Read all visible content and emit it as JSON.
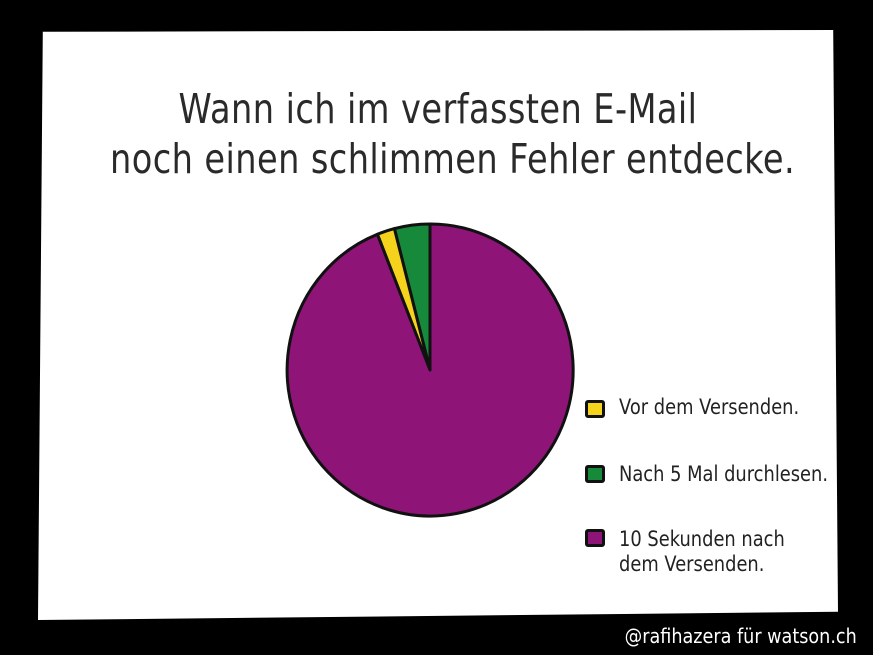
{
  "chart_data": {
    "type": "pie",
    "title_lines": [
      "Wann ich im verfassten E-Mail",
      "noch einen schlimmen Fehler entdecke."
    ],
    "slices": [
      {
        "label": "Vor dem Versenden.",
        "value": 2,
        "color": "#f5d21c"
      },
      {
        "label": "Nach 5 Mal durchlesen.",
        "value": 4,
        "color": "#16893a"
      },
      {
        "label_lines": [
          "10 Sekunden nach",
          "dem Versenden."
        ],
        "value": 94,
        "color": "#8e1478"
      }
    ],
    "legend_position": "right"
  },
  "credit": "@rafihazera für watson.ch"
}
